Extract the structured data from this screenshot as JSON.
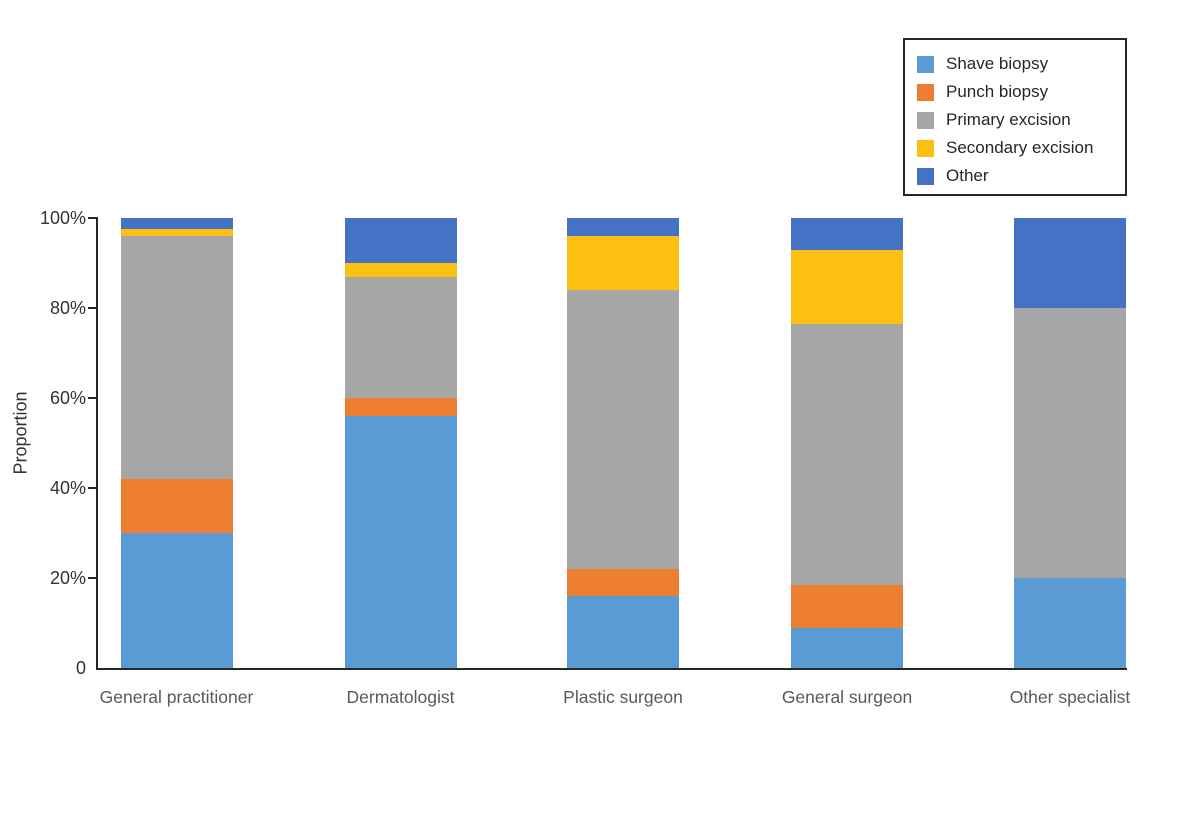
{
  "chart_data": {
    "type": "bar",
    "stacked": true,
    "units": "percent",
    "title": "",
    "xlabel": "",
    "ylabel": "Proportion",
    "ylim": [
      0,
      100
    ],
    "grid": false,
    "legend_position": "top-right",
    "y_ticks": [
      {
        "value": 0,
        "label": "0"
      },
      {
        "value": 20,
        "label": "20%"
      },
      {
        "value": 40,
        "label": "40%"
      },
      {
        "value": 60,
        "label": "60%"
      },
      {
        "value": 80,
        "label": "80%"
      },
      {
        "value": 100,
        "label": "100%"
      }
    ],
    "categories": [
      "General practitioner",
      "Dermatologist",
      "Plastic surgeon",
      "General surgeon",
      "Other specialist"
    ],
    "series": [
      {
        "name": "Shave biopsy",
        "color": "#5B9BD5",
        "values": [
          30,
          56,
          16,
          9,
          20
        ]
      },
      {
        "name": "Punch biopsy",
        "color": "#ED7D31",
        "values": [
          12,
          4,
          6,
          9.5,
          0
        ]
      },
      {
        "name": "Primary excision",
        "color": "#A6A6A6",
        "values": [
          54,
          27,
          62,
          58,
          60
        ]
      },
      {
        "name": "Secondary excision",
        "color": "#FBC011",
        "values": [
          1.5,
          3,
          12,
          16.5,
          0
        ]
      },
      {
        "name": "Other",
        "color": "#4472C4",
        "values": [
          2.5,
          10,
          4,
          7,
          20
        ]
      }
    ]
  },
  "colors": {
    "axis": "#262626",
    "tick_label": "#333333",
    "category_label": "#595959",
    "legend_text": "#262626",
    "background": "#ffffff"
  }
}
